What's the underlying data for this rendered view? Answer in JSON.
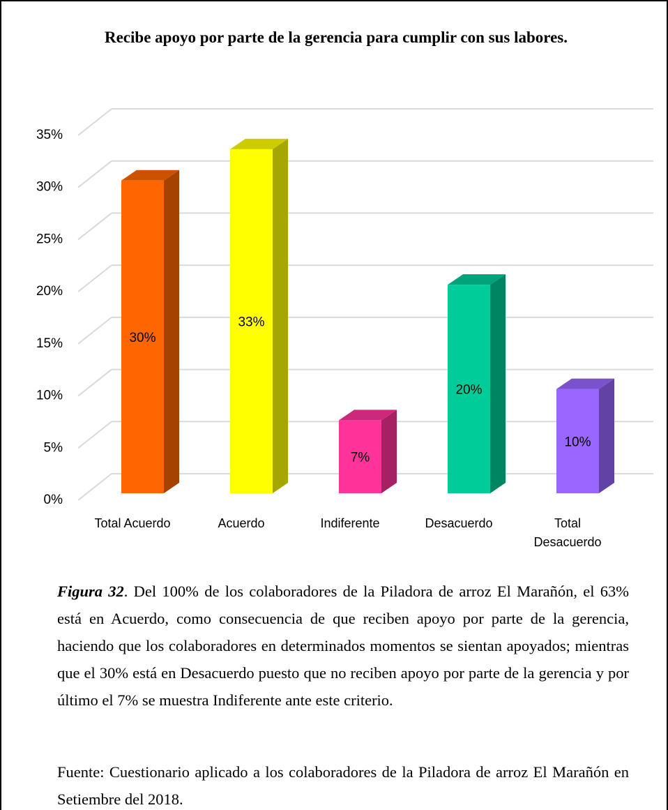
{
  "chart_data": {
    "type": "bar3d",
    "title": "Recibe apoyo por parte de la gerencia para cumplir con sus labores.",
    "categories": [
      "Total Acuerdo",
      "Acuerdo",
      "Indiferente",
      "Desacuerdo",
      "Total Desacuerdo"
    ],
    "values": [
      30,
      33,
      7,
      20,
      10
    ],
    "value_labels": [
      "30%",
      "33%",
      "7%",
      "20%",
      "10%"
    ],
    "colors": [
      "#ff6600",
      "#ffff00",
      "#ff3399",
      "#00cc99",
      "#9966ff"
    ],
    "ylim": [
      0,
      35
    ],
    "yticks": [
      {
        "value": 0,
        "label": "0%"
      },
      {
        "value": 5,
        "label": "5%"
      },
      {
        "value": 10,
        "label": "10%"
      },
      {
        "value": 15,
        "label": "15%"
      },
      {
        "value": 20,
        "label": "20%"
      },
      {
        "value": 25,
        "label": "25%"
      },
      {
        "value": 30,
        "label": "30%"
      },
      {
        "value": 35,
        "label": "35%"
      }
    ],
    "grid": true
  },
  "caption": {
    "label": "Figura 32",
    "text": ". Del 100% de los colaboradores de la Piladora de arroz El Marañón, el 63% está en Acuerdo, como consecuencia de que reciben apoyo por parte de la gerencia, haciendo que los colaboradores en determinados momentos se sientan apoyados; mientras que el 30% está en Desacuerdo puesto que no reciben apoyo por parte de la gerencia y por último el 7% se muestra Indiferente ante este criterio."
  },
  "source": "Fuente: Cuestionario aplicado a los colaboradores de la Piladora de arroz El Marañón en Setiembre del 2018."
}
